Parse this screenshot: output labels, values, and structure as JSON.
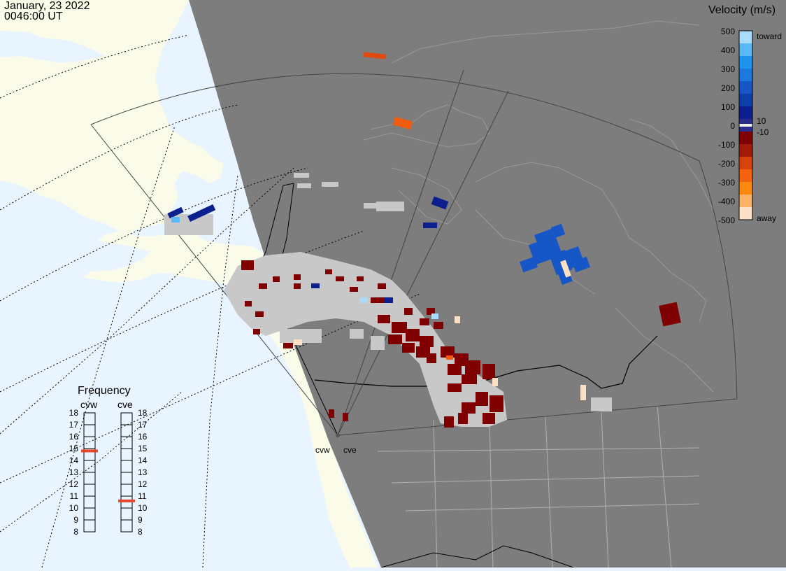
{
  "timestamp": {
    "date": "January, 23 2022",
    "time": "0046:00 UT"
  },
  "colorbar": {
    "title": "Velocity (m/s)",
    "ticks": [
      "500",
      "400",
      "300",
      "200",
      "100",
      "0",
      "-100",
      "-200",
      "-300",
      "-400",
      "-500"
    ],
    "inner_ticks": [
      "10",
      "-10"
    ],
    "toward_label": "toward",
    "away_label": "away",
    "colors": [
      "#fde0c5",
      "#fcb265",
      "#fd8a0e",
      "#f4620d",
      "#d6430c",
      "#a31b0b",
      "#7f0000",
      "#2b2b8a",
      "#0b1f8e",
      "#0d3fa8",
      "#1756c6",
      "#1d78e0",
      "#1e94ee",
      "#5ab8f5",
      "#a9dcfb"
    ]
  },
  "frequency": {
    "title": "Frequency",
    "radars": [
      "cvw",
      "cve"
    ],
    "scale": [
      "18",
      "17",
      "16",
      "15",
      "14",
      "13",
      "12",
      "11",
      "10",
      "9",
      "8"
    ],
    "cvw_mhz": 14.8,
    "cve_mhz": 10.6,
    "marker_color": "#e8442a"
  },
  "radar_sites": [
    "cvw",
    "cve"
  ],
  "map_colors": {
    "ocean": "#e8f4ff",
    "land": "#fbfbe9",
    "night": "#7d7d7d",
    "ground_scatter": "#c8c8c8"
  }
}
